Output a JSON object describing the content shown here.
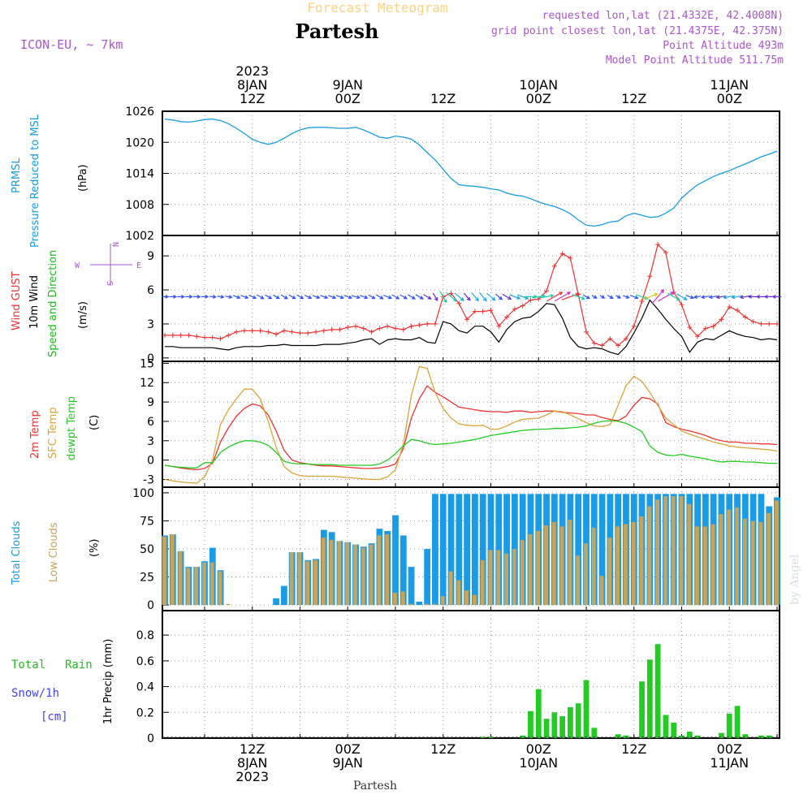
{
  "header": {
    "title_top": "Forecast Meteogram",
    "location": "Partesh",
    "model": "ICON-EU, ~ 7km",
    "requested": "requested lon,lat (21.4332E, 42.4008N)",
    "grid": "grid point closest lon,lat (21.4375E, 42.375N)",
    "point_alt": "Point Altitude 493m",
    "model_alt": "Model Point Altitude 511.75m",
    "watermark": "by Angel",
    "footer": "Partesh"
  },
  "time_axis": {
    "top": [
      {
        "hour": 12,
        "lines": [
          "2023",
          "8JAN",
          "12Z"
        ]
      },
      {
        "hour": 24,
        "lines": [
          "9JAN",
          "00Z"
        ]
      },
      {
        "hour": 36,
        "lines": [
          "12Z"
        ]
      },
      {
        "hour": 48,
        "lines": [
          "10JAN",
          "00Z"
        ]
      },
      {
        "hour": 60,
        "lines": [
          "12Z"
        ]
      },
      {
        "hour": 72,
        "lines": [
          "11JAN",
          "00Z"
        ]
      }
    ],
    "bottom": [
      {
        "hour": 12,
        "lines": [
          "12Z",
          "8JAN",
          "2023"
        ]
      },
      {
        "hour": 24,
        "lines": [
          "00Z",
          "9JAN"
        ]
      },
      {
        "hour": 36,
        "lines": [
          "12Z"
        ]
      },
      {
        "hour": 48,
        "lines": [
          "00Z",
          "10JAN"
        ]
      },
      {
        "hour": 60,
        "lines": [
          "12Z"
        ]
      },
      {
        "hour": 72,
        "lines": [
          "00Z",
          "11JAN"
        ]
      }
    ],
    "range_hours": [
      1,
      78
    ]
  },
  "colors": {
    "pressure": "#1a9be6",
    "gust": "#ee3333",
    "wind": "#000000",
    "wind_label": "#22bb22",
    "temp2m": "#ee3333",
    "sfc": "#dba43a",
    "dewpt": "#22cc22",
    "total_cloud": "#1a9be6",
    "low_cloud": "#c9a457",
    "rain": "#22cc22",
    "snow": "#4444ee",
    "header_purple": "#aa55cc",
    "title_orange": "#ffd27f"
  },
  "chart_data": [
    {
      "type": "line",
      "name": "pressure",
      "labels": [
        "PRMSL",
        "Pressure Reduced to MSL"
      ],
      "unit": "(hPa)",
      "ylim": [
        1002,
        1026
      ],
      "yticks": [
        1002,
        1008,
        1014,
        1020,
        1026
      ],
      "x": [
        1,
        2,
        3,
        4,
        5,
        6,
        7,
        8,
        9,
        10,
        11,
        12,
        13,
        14,
        15,
        16,
        17,
        18,
        19,
        20,
        21,
        22,
        23,
        24,
        25,
        26,
        27,
        28,
        29,
        30,
        31,
        32,
        33,
        34,
        35,
        36,
        37,
        38,
        39,
        40,
        41,
        42,
        43,
        44,
        45,
        46,
        47,
        48,
        49,
        50,
        51,
        52,
        53,
        54,
        55,
        56,
        57,
        58,
        59,
        60,
        61,
        62,
        63,
        64,
        65,
        66,
        67,
        68,
        69,
        70,
        71,
        72,
        73,
        74,
        75,
        76,
        77,
        78
      ],
      "values": [
        1024.5,
        1024.3,
        1024.0,
        1023.9,
        1024.1,
        1024.4,
        1024.5,
        1024.2,
        1023.6,
        1022.7,
        1021.7,
        1020.6,
        1020.0,
        1019.6,
        1020.0,
        1020.8,
        1021.7,
        1022.4,
        1022.8,
        1022.9,
        1022.9,
        1022.8,
        1022.7,
        1022.7,
        1022.9,
        1022.4,
        1021.7,
        1021.0,
        1020.8,
        1021.2,
        1021.0,
        1020.6,
        1019.5,
        1018.0,
        1016.6,
        1014.8,
        1013.0,
        1011.8,
        1011.6,
        1011.5,
        1011.3,
        1011.0,
        1010.8,
        1010.2,
        1009.8,
        1009.6,
        1009.1,
        1008.5,
        1008.0,
        1007.6,
        1007.0,
        1006.2,
        1005.0,
        1004.0,
        1003.8,
        1004.1,
        1004.6,
        1004.8,
        1005.8,
        1006.3,
        1005.9,
        1005.5,
        1005.6,
        1006.3,
        1007.3,
        1009.2,
        1010.6,
        1011.8,
        1012.6,
        1013.4,
        1014.0,
        1014.5,
        1015.2,
        1015.8,
        1016.5,
        1017.2,
        1017.7,
        1018.3
      ],
      "extra_tick_label": "1002"
    },
    {
      "type": "line",
      "name": "wind",
      "labels": [
        "Wind GUST",
        "10m Wind",
        "Speed and Direction"
      ],
      "unit": "(m/s)",
      "compass": [
        "N",
        "S",
        "W",
        "E"
      ],
      "ylim": [
        -0.3,
        10.8
      ],
      "yticks": [
        0,
        3,
        6,
        9
      ],
      "x": [
        1,
        2,
        3,
        4,
        5,
        6,
        7,
        8,
        9,
        10,
        11,
        12,
        13,
        14,
        15,
        16,
        17,
        18,
        19,
        20,
        21,
        22,
        23,
        24,
        25,
        26,
        27,
        28,
        29,
        30,
        31,
        32,
        33,
        34,
        35,
        36,
        37,
        38,
        39,
        40,
        41,
        42,
        43,
        44,
        45,
        46,
        47,
        48,
        49,
        50,
        51,
        52,
        53,
        54,
        55,
        56,
        57,
        58,
        59,
        60,
        61,
        62,
        63,
        64,
        65,
        66,
        67,
        68,
        69,
        70,
        71,
        72,
        73,
        74,
        75,
        76,
        77,
        78
      ],
      "gust": [
        2.0,
        2.0,
        2.0,
        2.0,
        1.9,
        1.8,
        1.8,
        1.7,
        2.0,
        2.3,
        2.4,
        2.4,
        2.4,
        2.3,
        2.1,
        2.4,
        2.3,
        2.2,
        2.2,
        2.3,
        2.4,
        2.5,
        2.5,
        2.7,
        2.8,
        2.6,
        2.3,
        2.6,
        2.8,
        2.6,
        2.5,
        2.8,
        2.9,
        3.0,
        3.0,
        5.4,
        5.7,
        4.8,
        3.4,
        4.1,
        4.1,
        4.2,
        2.8,
        3.6,
        4.3,
        4.6,
        5.1,
        5.2,
        5.9,
        8.1,
        9.2,
        8.8,
        5.6,
        2.3,
        1.3,
        1.1,
        1.7,
        1.1,
        1.7,
        2.8,
        5.0,
        7.2,
        10.0,
        9.3,
        5.8,
        4.7,
        2.7,
        1.9,
        2.6,
        2.8,
        3.4,
        4.5,
        4.2,
        3.6,
        3.2,
        3.0,
        3.0,
        3.0
      ],
      "speed": [
        1.0,
        1.0,
        0.9,
        0.9,
        0.9,
        0.9,
        0.9,
        0.8,
        0.7,
        0.9,
        1.0,
        1.0,
        1.0,
        1.1,
        1.1,
        1.2,
        1.1,
        1.1,
        1.1,
        1.1,
        1.2,
        1.2,
        1.2,
        1.3,
        1.4,
        1.6,
        1.7,
        1.2,
        1.6,
        1.7,
        1.6,
        1.6,
        1.8,
        1.4,
        1.3,
        3.2,
        3.0,
        2.4,
        2.2,
        2.8,
        2.8,
        2.3,
        1.4,
        2.5,
        3.2,
        3.5,
        3.6,
        4.1,
        4.8,
        4.7,
        3.5,
        1.8,
        1.0,
        0.8,
        0.9,
        0.8,
        0.5,
        0.3,
        1.0,
        2.2,
        3.5,
        5.1,
        4.3,
        3.4,
        2.6,
        1.9,
        0.5,
        1.4,
        1.7,
        1.6,
        2.0,
        2.4,
        2.1,
        1.9,
        1.8,
        1.6,
        1.7,
        1.6
      ],
      "arrow_dirs_deg": [
        270,
        270,
        270,
        270,
        270,
        270,
        275,
        280,
        280,
        290,
        290,
        295,
        300,
        300,
        300,
        300,
        300,
        300,
        295,
        290,
        290,
        290,
        290,
        290,
        285,
        290,
        300,
        300,
        290,
        300,
        300,
        300,
        300,
        300,
        330,
        330,
        310,
        310,
        320,
        320,
        320,
        310,
        310,
        300,
        290,
        290,
        270,
        260,
        260,
        240,
        240,
        250,
        290,
        300,
        300,
        300,
        300,
        300,
        290,
        290,
        290,
        250,
        220,
        240,
        300,
        300,
        290,
        80,
        80,
        80,
        80,
        80,
        80,
        80,
        90,
        90,
        90,
        90
      ]
    },
    {
      "type": "line",
      "name": "temperature",
      "labels": [
        "2m Temp",
        "SFC Temp",
        "dewpt Temp"
      ],
      "unit": "(C)",
      "ylim": [
        -4.2,
        15.3
      ],
      "yticks": [
        -3,
        0,
        3,
        6,
        9,
        12,
        15
      ],
      "x": [
        1,
        2,
        3,
        4,
        5,
        6,
        7,
        8,
        9,
        10,
        11,
        12,
        13,
        14,
        15,
        16,
        17,
        18,
        19,
        20,
        21,
        22,
        23,
        24,
        25,
        26,
        27,
        28,
        29,
        30,
        31,
        32,
        33,
        34,
        35,
        36,
        37,
        38,
        39,
        40,
        41,
        42,
        43,
        44,
        45,
        46,
        47,
        48,
        49,
        50,
        51,
        52,
        53,
        54,
        55,
        56,
        57,
        58,
        59,
        60,
        61,
        62,
        63,
        64,
        65,
        66,
        67,
        68,
        69,
        70,
        71,
        72,
        73,
        74,
        75,
        76,
        77,
        78
      ],
      "t2m": [
        -0.8,
        -1.0,
        -1.2,
        -1.4,
        -1.5,
        -1.3,
        -0.5,
        2.8,
        5.0,
        6.8,
        8.0,
        8.7,
        8.4,
        7.0,
        4.5,
        1.5,
        0.0,
        -0.4,
        -0.6,
        -0.8,
        -0.9,
        -0.9,
        -1.0,
        -1.1,
        -1.2,
        -1.3,
        -1.3,
        -1.2,
        -1.0,
        -0.6,
        1.8,
        6.5,
        9.5,
        11.5,
        10.5,
        9.8,
        9.0,
        8.2,
        8.0,
        7.8,
        7.6,
        7.5,
        7.5,
        7.4,
        7.6,
        7.6,
        7.4,
        7.5,
        7.6,
        7.6,
        7.4,
        7.3,
        7.2,
        7.0,
        7.0,
        6.6,
        6.3,
        6.1,
        6.8,
        8.5,
        9.7,
        9.5,
        8.7,
        5.8,
        5.2,
        4.8,
        4.5,
        4.2,
        3.8,
        3.3,
        3.0,
        2.8,
        2.8,
        2.6,
        2.6,
        2.5,
        2.5,
        2.4
      ],
      "sfc": [
        -3.0,
        -3.2,
        -3.4,
        -3.5,
        -3.6,
        -2.6,
        0.0,
        5.5,
        7.8,
        9.5,
        11.0,
        11.0,
        9.5,
        6.0,
        2.0,
        -1.0,
        -2.0,
        -2.4,
        -2.5,
        -2.5,
        -2.5,
        -2.5,
        -2.6,
        -2.7,
        -2.8,
        -2.9,
        -3.0,
        -3.0,
        -2.6,
        -1.5,
        2.5,
        10.0,
        14.5,
        14.2,
        10.5,
        8.0,
        6.5,
        5.6,
        5.4,
        5.3,
        5.4,
        4.8,
        4.8,
        5.3,
        5.9,
        6.3,
        6.4,
        6.5,
        7.0,
        7.6,
        7.5,
        7.0,
        6.4,
        5.8,
        5.3,
        5.2,
        5.5,
        8.5,
        11.5,
        13.0,
        12.2,
        10.5,
        8.5,
        6.5,
        5.5,
        4.5,
        4.0,
        3.6,
        3.2,
        2.8,
        2.5,
        2.2,
        2.0,
        1.9,
        1.8,
        1.7,
        1.6,
        1.4
      ],
      "dewpt": [
        -0.8,
        -1.0,
        -1.1,
        -1.2,
        -1.2,
        -0.4,
        -0.4,
        1.2,
        2.0,
        2.6,
        3.0,
        3.0,
        2.8,
        2.3,
        1.2,
        -0.2,
        -0.5,
        -0.6,
        -0.6,
        -0.7,
        -0.7,
        -0.7,
        -0.8,
        -0.8,
        -0.8,
        -0.8,
        -0.8,
        -0.6,
        0.0,
        1.0,
        2.2,
        3.2,
        3.0,
        2.6,
        2.4,
        2.5,
        2.6,
        2.8,
        3.0,
        3.2,
        3.5,
        3.8,
        4.0,
        4.2,
        4.4,
        4.6,
        4.7,
        4.8,
        4.8,
        4.9,
        4.9,
        5.0,
        5.1,
        5.3,
        5.7,
        6.0,
        6.1,
        6.0,
        5.7,
        5.1,
        4.4,
        2.2,
        1.2,
        0.8,
        0.7,
        0.9,
        0.6,
        0.4,
        0.2,
        -0.1,
        -0.3,
        -0.2,
        -0.2,
        -0.3,
        -0.3,
        -0.4,
        -0.5,
        -0.5
      ]
    },
    {
      "type": "bar",
      "name": "clouds",
      "labels": [
        "Total Clouds",
        "Low Clouds"
      ],
      "unit": "(%)",
      "ylim": [
        -5,
        105
      ],
      "yticks": [
        0,
        25,
        50,
        75,
        100
      ],
      "x": [
        1,
        2,
        3,
        4,
        5,
        6,
        7,
        8,
        9,
        10,
        11,
        12,
        13,
        14,
        15,
        16,
        17,
        18,
        19,
        20,
        21,
        22,
        23,
        24,
        25,
        26,
        27,
        28,
        29,
        30,
        31,
        32,
        33,
        34,
        35,
        36,
        37,
        38,
        39,
        40,
        41,
        42,
        43,
        44,
        45,
        46,
        47,
        48,
        49,
        50,
        51,
        52,
        53,
        54,
        55,
        56,
        57,
        58,
        59,
        60,
        61,
        62,
        63,
        64,
        65,
        66,
        67,
        68,
        69,
        70,
        71,
        72,
        73,
        74,
        75,
        76,
        77,
        78
      ],
      "total": [
        62,
        63,
        48,
        34,
        34,
        39,
        51,
        31,
        0,
        0,
        0,
        0,
        0,
        0,
        6,
        17,
        47,
        47,
        40,
        41,
        67,
        65,
        57,
        56,
        54,
        52,
        55,
        68,
        66,
        80,
        62,
        34,
        3,
        50,
        99,
        99,
        99,
        99,
        99,
        99,
        99,
        99,
        99,
        99,
        99,
        99,
        99,
        99,
        99,
        99,
        99,
        99,
        99,
        99,
        99,
        99,
        99,
        99,
        99,
        99,
        99,
        99,
        99,
        99,
        99,
        99,
        99,
        99,
        99,
        99,
        99,
        99,
        99,
        99,
        99,
        99,
        88,
        96
      ],
      "low": [
        61,
        63,
        48,
        33,
        34,
        38,
        38,
        30,
        1,
        0,
        0,
        0,
        0,
        0,
        0,
        0,
        47,
        47,
        39,
        40,
        60,
        58,
        57,
        56,
        54,
        51,
        54,
        62,
        63,
        11,
        12,
        1,
        0,
        1,
        1,
        8,
        30,
        22,
        13,
        9,
        40,
        49,
        49,
        46,
        50,
        58,
        63,
        66,
        71,
        74,
        70,
        76,
        44,
        55,
        69,
        26,
        60,
        70,
        72,
        74,
        79,
        88,
        94,
        97,
        97,
        97,
        90,
        70,
        70,
        72,
        81,
        85,
        87,
        77,
        75,
        74,
        82,
        93
      ]
    },
    {
      "type": "bar",
      "name": "precip",
      "labels": [
        "Total",
        "Rain",
        "Snow/1h",
        "[cm]"
      ],
      "unit": "1hr Precip (mm)",
      "ylim": [
        0,
        0.99
      ],
      "yticks": [
        0,
        0.2,
        0.4,
        0.6,
        0.8
      ],
      "ytick_labels": [
        "0",
        "0.2",
        "0.4",
        "0.6",
        "0.8"
      ],
      "x": [
        1,
        2,
        3,
        4,
        5,
        6,
        7,
        8,
        9,
        10,
        11,
        12,
        13,
        14,
        15,
        16,
        17,
        18,
        19,
        20,
        21,
        22,
        23,
        24,
        25,
        26,
        27,
        28,
        29,
        30,
        31,
        32,
        33,
        34,
        35,
        36,
        37,
        38,
        39,
        40,
        41,
        42,
        43,
        44,
        45,
        46,
        47,
        48,
        49,
        50,
        51,
        52,
        53,
        54,
        55,
        56,
        57,
        58,
        59,
        60,
        61,
        62,
        63,
        64,
        65,
        66,
        67,
        68,
        69,
        70,
        71,
        72,
        73,
        74,
        75,
        76,
        77,
        78
      ],
      "rain": [
        0,
        0,
        0,
        0,
        0,
        0,
        0,
        0,
        0,
        0,
        0,
        0,
        0,
        0,
        0,
        0,
        0,
        0,
        0,
        0,
        0,
        0,
        0,
        0,
        0,
        0,
        0,
        0,
        0,
        0,
        0,
        0,
        0,
        0,
        0,
        0,
        0,
        0,
        0,
        0,
        0.01,
        0.01,
        0,
        0,
        0,
        0.02,
        0.21,
        0.38,
        0.15,
        0.2,
        0.17,
        0.24,
        0.27,
        0.45,
        0.08,
        0.0,
        0.0,
        0.03,
        0.02,
        0.0,
        0.44,
        0.61,
        0.73,
        0.18,
        0.12,
        0.02,
        0.05,
        0.02,
        0.0,
        0.0,
        0.04,
        0.19,
        0.25,
        0.03,
        0.0,
        0.02,
        0.02,
        0.0
      ]
    }
  ]
}
